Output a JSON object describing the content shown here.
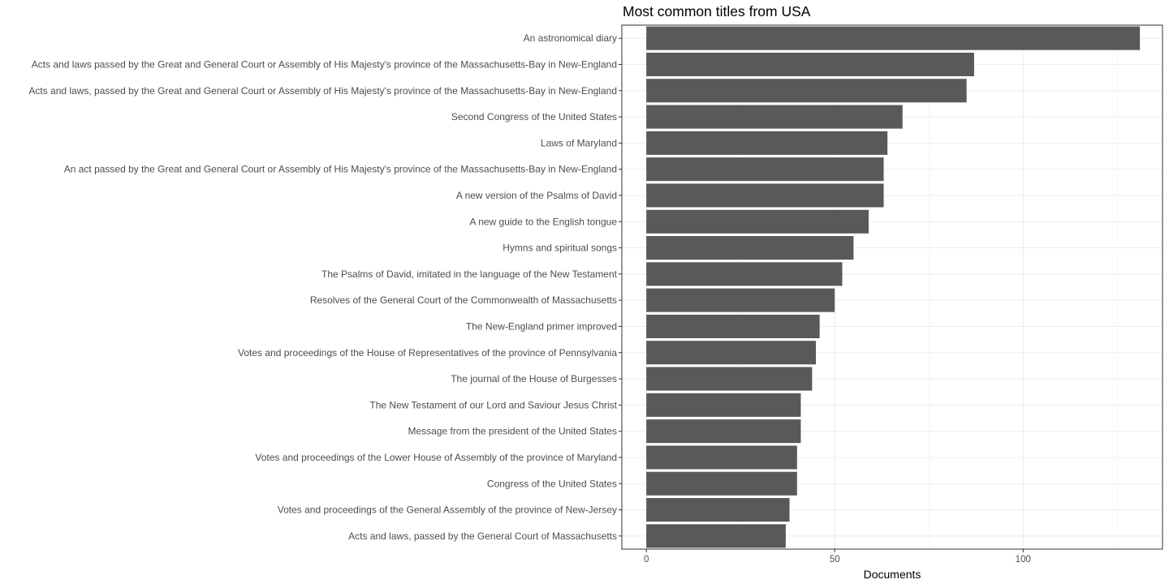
{
  "chart_data": {
    "type": "bar",
    "orientation": "horizontal",
    "title": "Most common titles from USA",
    "xlabel": "Documents",
    "ylabel": "",
    "xlim": [
      -6.5,
      137
    ],
    "xticks": [
      0,
      50,
      100
    ],
    "grid": true,
    "bar_color": "#595959",
    "categories": [
      "An astronomical diary",
      "Acts and laws passed by the Great and General Court or Assembly of His Majesty's province of the Massachusetts-Bay in New-England",
      "Acts and laws, passed by the Great and General Court or Assembly of His Majesty's province of the Massachusetts-Bay in New-England",
      "Second Congress of the United States",
      "Laws of Maryland",
      "An act passed by the Great and General Court or Assembly of His Majesty's province of the Massachusetts-Bay in New-England",
      "A new version of the Psalms of David",
      "A new guide to the English tongue",
      "Hymns and spiritual songs",
      "The Psalms of David, imitated in the language of the New Testament",
      "Resolves of the General Court of the Commonwealth of Massachusetts",
      "The New-England primer improved",
      "Votes and proceedings of the House of Representatives of the province of Pennsylvania",
      "The journal of the House of Burgesses",
      "The New Testament of our Lord and Saviour Jesus Christ",
      "Message from the president of the United States",
      "Votes and proceedings of the Lower House of Assembly of the province of Maryland",
      "Congress of the United States",
      "Votes and proceedings of the General Assembly of the province of New-Jersey",
      "Acts and laws, passed by the General Court of Massachusetts"
    ],
    "values": [
      131,
      87,
      85,
      68,
      64,
      63,
      63,
      59,
      55,
      52,
      50,
      46,
      45,
      44,
      41,
      41,
      40,
      40,
      38,
      37
    ]
  }
}
